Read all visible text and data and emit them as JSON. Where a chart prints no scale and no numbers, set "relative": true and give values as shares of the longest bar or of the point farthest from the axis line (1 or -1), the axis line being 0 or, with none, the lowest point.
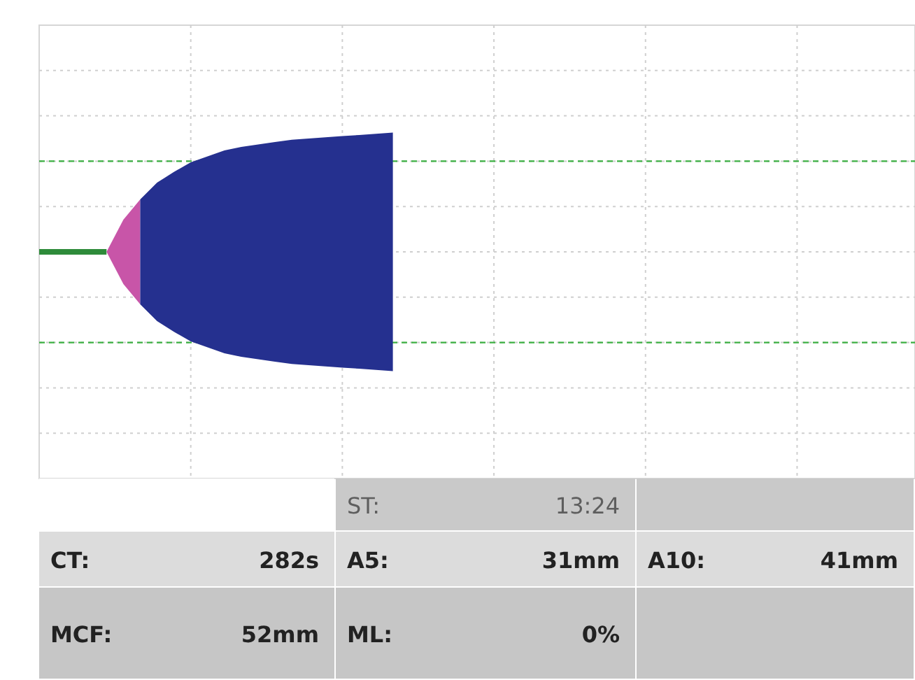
{
  "chart_data": {
    "type": "area",
    "relative": true,
    "categories": [
      null,
      null,
      null,
      null,
      null,
      null,
      null,
      null,
      null,
      null,
      null,
      null,
      null,
      null,
      null,
      null,
      null,
      null,
      null,
      null,
      null,
      null,
      null,
      null,
      null,
      null,
      null,
      null,
      null,
      null,
      null,
      null,
      null,
      null,
      null,
      null,
      null,
      null,
      null,
      null,
      null,
      null,
      null,
      null,
      null,
      null,
      null,
      null,
      null,
      null,
      null,
      null,
      null
    ],
    "grid": true,
    "series": [
      {
        "type": "line",
        "color": "#2e8b3a",
        "values": [
          0,
          0,
          0,
          0,
          0,
          null,
          null,
          null,
          null,
          null,
          null,
          null,
          null,
          null,
          null,
          null,
          null,
          null,
          null,
          null,
          null,
          null,
          null,
          null,
          null,
          null,
          null,
          null,
          null,
          null,
          null,
          null,
          null,
          null,
          null,
          null,
          null,
          null,
          null,
          null,
          null,
          null,
          null,
          null,
          null,
          null,
          null,
          null,
          null,
          null,
          null,
          null,
          null
        ]
      },
      {
        "type": "area",
        "color": "#c855a8",
        "values": [
          null,
          null,
          null,
          null,
          0,
          0.27,
          0.44,
          null,
          null,
          null,
          null,
          null,
          null,
          null,
          null,
          null,
          null,
          null,
          null,
          null,
          null,
          null,
          null,
          null,
          null,
          null,
          null,
          null,
          null,
          null,
          null,
          null,
          null,
          null,
          null,
          null,
          null,
          null,
          null,
          null,
          null,
          null,
          null,
          null,
          null,
          null,
          null,
          null,
          null,
          null,
          null,
          null,
          null
        ]
      },
      {
        "type": "area",
        "color": "#25308f",
        "values": [
          null,
          null,
          null,
          null,
          null,
          null,
          0.44,
          0.58,
          0.67,
          0.75,
          0.8,
          0.85,
          0.88,
          0.9,
          0.92,
          0.94,
          0.95,
          0.96,
          0.97,
          0.98,
          0.99,
          1,
          null,
          null,
          null,
          null,
          null,
          null,
          null,
          null,
          null,
          null,
          null,
          null,
          null,
          null,
          null,
          null,
          null,
          null,
          null,
          null,
          null,
          null,
          null,
          null,
          null,
          null,
          null,
          null,
          null,
          null,
          null
        ]
      }
    ],
    "ref_lines": [
      {
        "axis": "y",
        "value": 0.76,
        "color": "#3cb043",
        "line_style": "dashed"
      },
      {
        "axis": "y",
        "value": -0.76,
        "color": "#3cb043",
        "line_style": "dashed"
      }
    ],
    "annotations": [
      "ST:",
      "13:24",
      "CT:",
      "282s",
      "A5:",
      "31mm",
      "A10:",
      "41mm",
      "MCF:",
      "52mm",
      "ML:",
      "0%"
    ]
  }
}
